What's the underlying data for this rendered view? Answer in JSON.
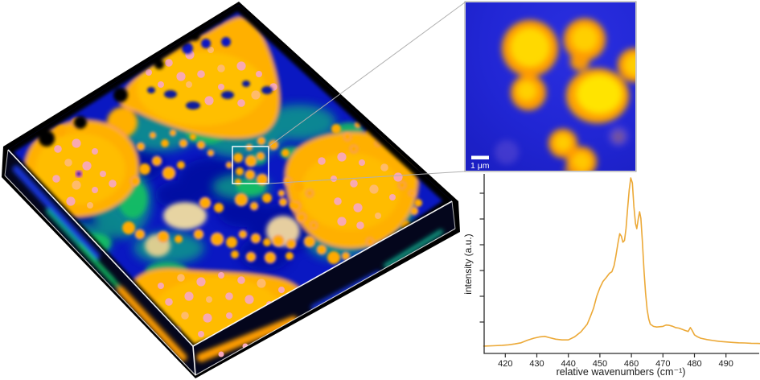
{
  "figure": {
    "description_labels": {
      "scale_bar": "1 μm"
    }
  },
  "inset": {
    "scale_bar_label": "1 μm"
  },
  "chart_data": {
    "type": "line",
    "title": "",
    "xlabel": "relative wavenumbers (cm⁻¹)",
    "ylabel": "intensity (a.u.)",
    "x_ticks": [
      420,
      430,
      440,
      450,
      460,
      470,
      480,
      490
    ],
    "xlim": [
      413,
      501.3
    ],
    "ylim": [
      0,
      1.05
    ],
    "grid": false,
    "legend": "none",
    "line_color": "#ECA937",
    "axis_color": "#2a2a2a",
    "series": [
      {
        "name": "spectrum",
        "x": [
          413,
          416,
          419,
          421,
          423,
          425,
          427,
          429,
          431,
          432.5,
          434,
          436,
          438,
          440,
          442,
          444,
          446,
          447,
          448,
          449,
          450,
          451,
          452,
          453,
          453.8,
          454.5,
          455,
          455.8,
          456.3,
          456.8,
          457.3,
          457.8,
          458.3,
          458.8,
          459.3,
          459.8,
          460.3,
          460.8,
          461.3,
          461.7,
          462.2,
          462.6,
          463,
          463.5,
          464,
          464.5,
          465,
          465.5,
          466,
          467,
          468,
          469,
          470,
          471,
          472,
          473,
          474,
          475,
          476,
          477,
          478,
          478.7,
          479.2,
          480,
          481,
          482,
          484,
          486,
          488,
          490,
          492,
          494,
          496,
          498,
          500,
          501.3
        ],
        "y": [
          0.005,
          0.007,
          0.01,
          0.013,
          0.018,
          0.025,
          0.04,
          0.052,
          0.06,
          0.063,
          0.055,
          0.046,
          0.042,
          0.042,
          0.06,
          0.09,
          0.135,
          0.18,
          0.23,
          0.3,
          0.35,
          0.388,
          0.41,
          0.435,
          0.445,
          0.48,
          0.53,
          0.62,
          0.67,
          0.655,
          0.62,
          0.63,
          0.7,
          0.82,
          0.93,
          1.0,
          0.97,
          0.83,
          0.73,
          0.7,
          0.76,
          0.8,
          0.76,
          0.62,
          0.45,
          0.32,
          0.22,
          0.165,
          0.135,
          0.122,
          0.118,
          0.12,
          0.122,
          0.13,
          0.128,
          0.123,
          0.115,
          0.112,
          0.105,
          0.098,
          0.092,
          0.115,
          0.1,
          0.072,
          0.06,
          0.052,
          0.044,
          0.038,
          0.033,
          0.03,
          0.027,
          0.025,
          0.024,
          0.022,
          0.021,
          0.02
        ]
      }
    ]
  },
  "colors": {
    "map_background_blue": "#0a18c2",
    "map_domain_orange": "#ffb000",
    "map_domain_core": "#ffd000",
    "map_green": "#17c45f",
    "map_teal": "#0ca387",
    "map_pink_dots": "#f8a8bc",
    "inset_background": "#2126d4",
    "inset_blob_yellow": "#ffdd00",
    "inset_blob_orange": "#ff9d00",
    "wireframe_white": "#ffffff",
    "connector_gray": "#b0b0b0"
  }
}
